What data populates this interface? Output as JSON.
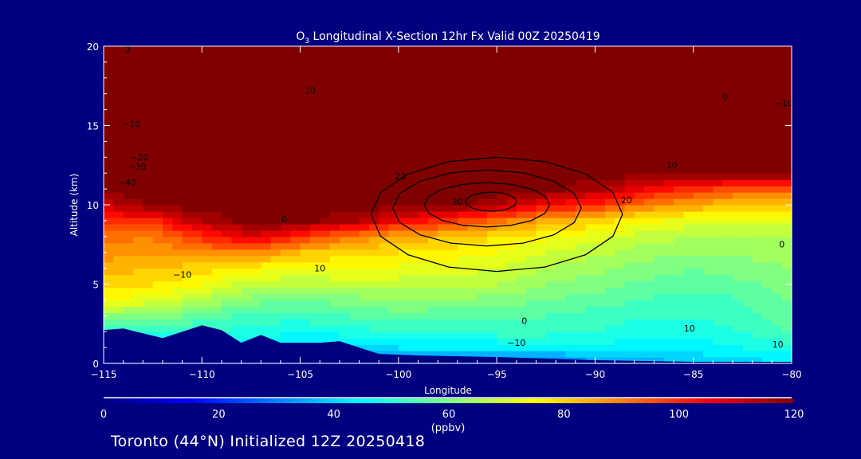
{
  "chart_data": {
    "type": "heatmap",
    "title_main": "O",
    "title_sub": "3",
    "title_rest": " Longitudinal X-Section 12hr  Fx Valid 00Z 20250419",
    "xlabel": "Longitude",
    "ylabel": "Altitude (km)",
    "xlim": [
      -115,
      -80
    ],
    "ylim": [
      0,
      20
    ],
    "x_ticks": [
      "−115",
      "−110",
      "−105",
      "−100",
      "−95",
      "−90",
      "−85",
      "−80"
    ],
    "x_tick_values": [
      -115,
      -110,
      -105,
      -100,
      -95,
      -90,
      -85,
      -80
    ],
    "y_ticks": [
      "0",
      "5",
      "10",
      "15",
      "20"
    ],
    "y_tick_values": [
      0,
      5,
      10,
      15,
      20
    ],
    "grid_lon": [
      -115,
      -112.5,
      -110,
      -107.5,
      -105,
      -102.5,
      -100,
      -97.5,
      -95,
      -92.5,
      -90,
      -87.5,
      -85,
      -82.5,
      -80
    ],
    "grid_alt": [
      0,
      1,
      2,
      3,
      4,
      5,
      6,
      7,
      8,
      9,
      10,
      11,
      12,
      13,
      14,
      15,
      16,
      17,
      18,
      19,
      20
    ],
    "values_ppbv": [
      [
        40,
        40,
        40,
        38,
        36,
        34,
        32,
        30,
        30,
        30,
        32,
        35,
        38,
        40,
        42
      ],
      [
        45,
        45,
        45,
        44,
        40,
        40,
        42,
        42,
        42,
        42,
        44,
        44,
        44,
        46,
        48
      ],
      [
        50,
        50,
        50,
        48,
        46,
        48,
        50,
        50,
        52,
        52,
        50,
        47,
        47,
        50,
        54
      ],
      [
        62,
        60,
        56,
        52,
        52,
        54,
        56,
        55,
        55,
        54,
        52,
        50,
        50,
        52,
        56
      ],
      [
        74,
        72,
        66,
        60,
        58,
        60,
        62,
        62,
        60,
        58,
        56,
        54,
        52,
        54,
        58
      ],
      [
        80,
        78,
        74,
        68,
        66,
        68,
        68,
        68,
        66,
        62,
        60,
        57,
        55,
        57,
        60
      ],
      [
        84,
        82,
        80,
        76,
        74,
        74,
        73,
        72,
        70,
        66,
        63,
        60,
        58,
        60,
        62
      ],
      [
        88,
        86,
        88,
        90,
        82,
        80,
        78,
        76,
        74,
        70,
        67,
        64,
        62,
        63,
        64
      ],
      [
        92,
        90,
        100,
        110,
        100,
        90,
        85,
        82,
        78,
        75,
        72,
        68,
        66,
        66,
        66
      ],
      [
        100,
        100,
        115,
        120,
        120,
        115,
        105,
        100,
        92,
        85,
        80,
        75,
        72,
        72,
        72
      ],
      [
        110,
        120,
        120,
        120,
        120,
        120,
        120,
        120,
        115,
        105,
        100,
        90,
        85,
        80,
        80
      ],
      [
        120,
        120,
        120,
        120,
        120,
        120,
        120,
        120,
        120,
        120,
        115,
        105,
        100,
        95,
        95
      ],
      [
        120,
        120,
        120,
        120,
        120,
        120,
        120,
        120,
        120,
        120,
        120,
        120,
        120,
        120,
        120
      ],
      [
        120,
        120,
        120,
        120,
        120,
        120,
        120,
        120,
        120,
        120,
        120,
        120,
        120,
        120,
        120
      ],
      [
        120,
        120,
        120,
        120,
        120,
        120,
        120,
        120,
        120,
        120,
        120,
        120,
        120,
        120,
        120
      ],
      [
        120,
        120,
        120,
        120,
        120,
        120,
        120,
        120,
        120,
        120,
        120,
        120,
        120,
        120,
        120
      ],
      [
        120,
        120,
        120,
        120,
        120,
        120,
        120,
        120,
        120,
        120,
        120,
        120,
        120,
        120,
        120
      ],
      [
        120,
        120,
        120,
        120,
        120,
        120,
        120,
        120,
        120,
        120,
        120,
        120,
        120,
        120,
        120
      ],
      [
        120,
        120,
        120,
        120,
        120,
        120,
        120,
        120,
        120,
        120,
        120,
        120,
        120,
        120,
        120
      ],
      [
        120,
        120,
        120,
        120,
        120,
        120,
        120,
        120,
        120,
        120,
        120,
        120,
        120,
        120,
        120
      ],
      [
        120,
        120,
        120,
        120,
        120,
        120,
        120,
        120,
        120,
        120,
        120,
        120,
        120,
        120,
        120
      ]
    ],
    "terrain_km": [
      [
        -115,
        2.1
      ],
      [
        -114,
        2.2
      ],
      [
        -112,
        1.6
      ],
      [
        -110,
        2.4
      ],
      [
        -109,
        2.1
      ],
      [
        -108,
        1.3
      ],
      [
        -107,
        1.8
      ],
      [
        -106,
        1.3
      ],
      [
        -104,
        1.3
      ],
      [
        -103,
        1.4
      ],
      [
        -101,
        0.6
      ],
      [
        -99,
        0.5
      ],
      [
        -95,
        0.4
      ],
      [
        -90,
        0.2
      ],
      [
        -85,
        0.1
      ],
      [
        -80,
        0.1
      ]
    ],
    "contour_rings": [
      {
        "lon": -95.3,
        "alt": 10.2,
        "rlon": 1.3,
        "ralt": 0.6
      },
      {
        "lon": -95.5,
        "alt": 10.0,
        "rlon": 3.2,
        "ralt": 1.4
      },
      {
        "lon": -95.5,
        "alt": 9.8,
        "rlon": 4.8,
        "ralt": 2.4
      },
      {
        "lon": -95.0,
        "alt": 9.4,
        "rlon": 6.4,
        "ralt": 3.6
      }
    ],
    "contour_labels": [
      {
        "text": "0",
        "lon": -113.8,
        "alt": 19.6
      },
      {
        "text": "−10",
        "lon": -113.6,
        "alt": 14.9
      },
      {
        "text": "−20",
        "lon": -113.2,
        "alt": 12.8
      },
      {
        "text": "−30",
        "lon": -113.3,
        "alt": 12.2
      },
      {
        "text": "−40",
        "lon": -113.8,
        "alt": 11.2
      },
      {
        "text": "0",
        "lon": -105.8,
        "alt": 8.9
      },
      {
        "text": "10",
        "lon": -104.0,
        "alt": 5.8
      },
      {
        "text": "−10",
        "lon": -111.0,
        "alt": 5.4
      },
      {
        "text": "10",
        "lon": -104.5,
        "alt": 17.0
      },
      {
        "text": "20",
        "lon": -99.9,
        "alt": 11.6
      },
      {
        "text": "30",
        "lon": -97.0,
        "alt": 10.0
      },
      {
        "text": "20",
        "lon": -88.4,
        "alt": 10.1
      },
      {
        "text": "10",
        "lon": -86.1,
        "alt": 12.3
      },
      {
        "text": "0",
        "lon": -83.4,
        "alt": 16.6
      },
      {
        "text": "−10",
        "lon": -80.4,
        "alt": 16.2
      },
      {
        "text": "0",
        "lon": -80.5,
        "alt": 7.3
      },
      {
        "text": "0",
        "lon": -93.6,
        "alt": 2.5
      },
      {
        "text": "10",
        "lon": -85.2,
        "alt": 2.0
      },
      {
        "text": "−10",
        "lon": -94.0,
        "alt": 1.1
      },
      {
        "text": "10",
        "lon": -80.7,
        "alt": 1.0
      }
    ],
    "colorbar": {
      "ticks": [
        "0",
        "20",
        "40",
        "60",
        "80",
        "100",
        "120"
      ],
      "tick_values": [
        0,
        20,
        40,
        60,
        80,
        100,
        120
      ],
      "range": [
        0,
        120
      ],
      "units": "(ppbv)",
      "colors": [
        "#00007f",
        "#0000ff",
        "#0080ff",
        "#00ffff",
        "#80ff80",
        "#ffff00",
        "#ff8000",
        "#ff0000",
        "#800000"
      ]
    }
  },
  "footer": "Toronto (44°N) Initialized 12Z 20250418",
  "colors": {
    "background": "#000080",
    "terrain": "#000080",
    "axis": "#ffffff"
  }
}
